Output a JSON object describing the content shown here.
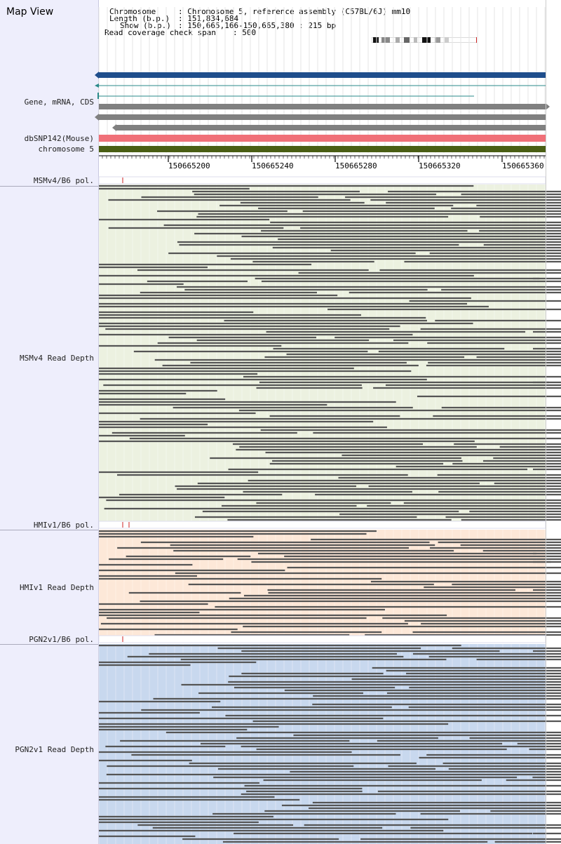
{
  "title": "Map View",
  "info": {
    "chromosome_key": "Chromosome",
    "chromosome_val": ": Chromosome 5, reference assembly (C57BL/6J) mm10",
    "length_key": "Length (b.p.)",
    "length_val": ": 151,834,684",
    "show_key": "Show (b.p.)",
    "show_val": ": 150,665,166-150,665,380 : 215 bp",
    "coverage_key": "Read coverage check span",
    "coverage_val": ": 500"
  },
  "tracks": {
    "gene": "Gene, mRNA, CDS",
    "dbsnp": "dbSNP142(Mouse)",
    "chromosome": "chromosome 5",
    "msm_pol": "MSMv4/B6 pol.",
    "msm_depth": "MSMv4 Read Depth",
    "hmi_pol": "HMIv1/B6 pol.",
    "hmi_depth": "HMIv1 Read Depth",
    "pgn_pol": "PGN2v1/B6 pol.",
    "pgn_depth": "PGN2v1 Read Depth"
  },
  "ruler": {
    "ticks": [
      "150665200",
      "150665240",
      "150665280",
      "150665320",
      "150665360"
    ]
  },
  "colors": {
    "gene_blue": "#1f4e8c",
    "gene_gray": "#808080",
    "dbsnp": "#f07078",
    "chromosome_band": "#4a5e14",
    "msm_bg": "#ecf1e0",
    "hmi_bg": "#fde8d8",
    "pgn_bg": "#c8d8ee",
    "read": "#555555",
    "variant_mark": "#cc2222"
  }
}
